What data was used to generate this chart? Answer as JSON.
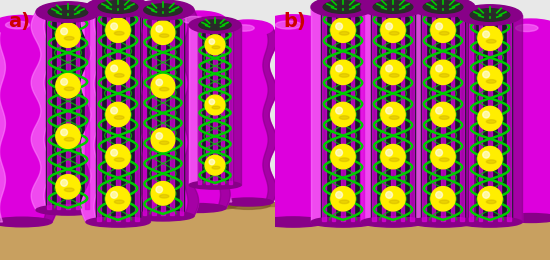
{
  "background_color": "#e8e8e8",
  "substrate_color": "#c8a060",
  "substrate_dark": "#a07840",
  "cylinder_magenta": "#dd00dd",
  "cylinder_magenta_dark": "#880088",
  "cylinder_magenta_light": "#ff88ff",
  "green_helix": "#00cc00",
  "yellow_sphere": "#ffee00",
  "yellow_sphere_dark": "#ccaa00",
  "label_color": "#cc0000",
  "label_a": "a)",
  "label_b": "b)",
  "fig_width": 5.5,
  "fig_height": 2.6,
  "dpi": 100
}
